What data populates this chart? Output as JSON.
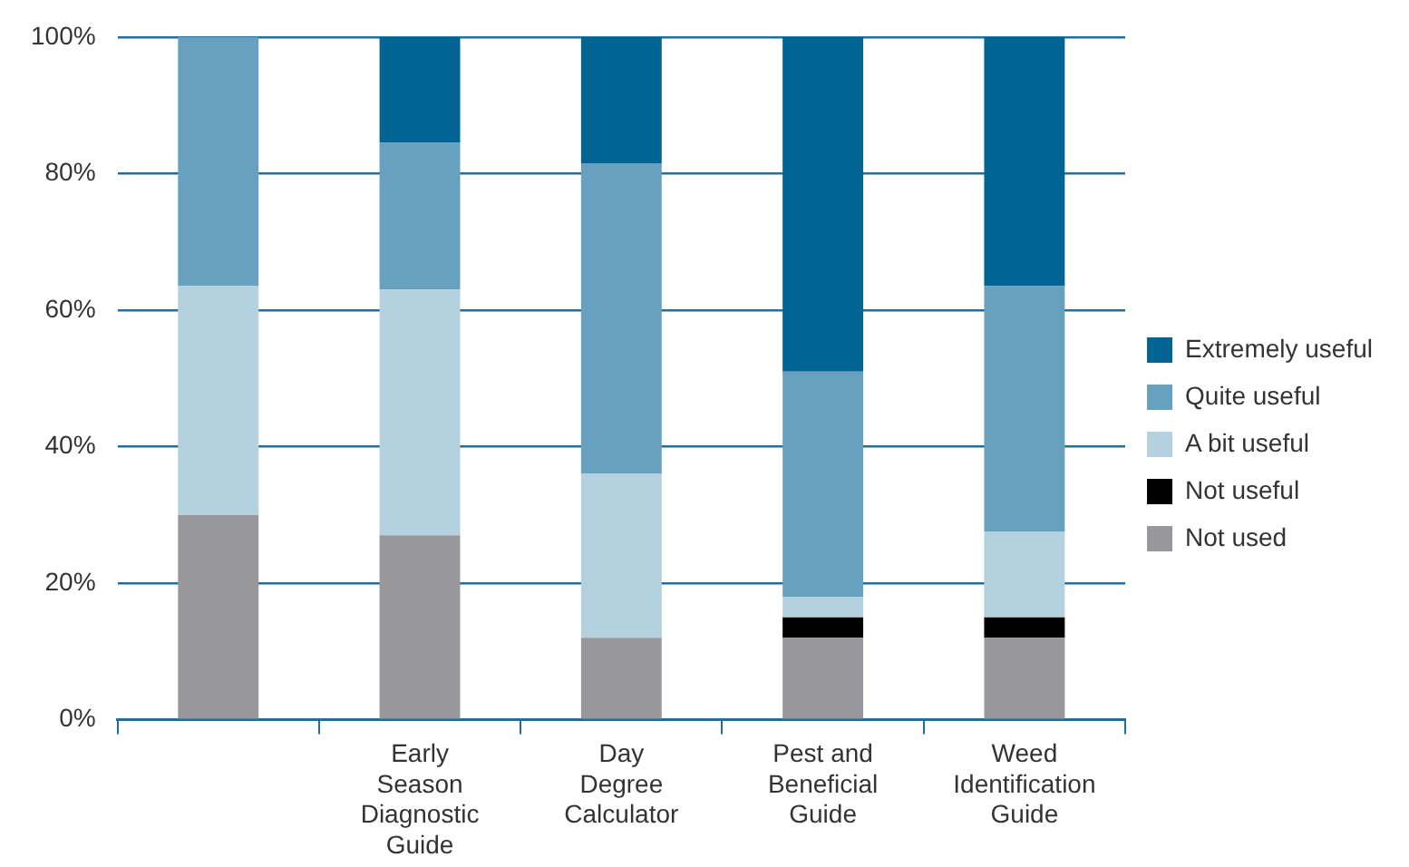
{
  "chart_data": {
    "type": "bar",
    "stacked": true,
    "categories": [
      null,
      "Early Season Diagnostic Guide",
      "Day Degree Calculator",
      "Pest and Beneficial Guide",
      "Weed Identification Guide"
    ],
    "series": [
      {
        "name": "Not used",
        "color": "#98979c",
        "values": [
          30,
          27,
          12,
          12,
          12
        ]
      },
      {
        "name": "Not useful",
        "color": "#000000",
        "values": [
          0,
          0,
          0,
          3,
          3
        ]
      },
      {
        "name": "A bit useful",
        "color": "#b4d1df",
        "values": [
          33.5,
          36,
          24,
          3,
          12.5
        ]
      },
      {
        "name": "Quite useful",
        "color": "#68a1bf",
        "values": [
          36.5,
          21.5,
          45.5,
          33,
          36
        ]
      },
      {
        "name": "Extremely useful",
        "color": "#026493",
        "values": [
          0,
          15.5,
          18.5,
          49,
          36.5
        ]
      }
    ],
    "ylim": [
      0,
      100
    ],
    "yticks": [
      {
        "value": 0,
        "label": "0%"
      },
      {
        "value": 20,
        "label": "20%"
      },
      {
        "value": 40,
        "label": "40%"
      },
      {
        "value": 60,
        "label": "60%"
      },
      {
        "value": 80,
        "label": "80%"
      },
      {
        "value": 100,
        "label": "100%"
      }
    ],
    "grid": "y",
    "legend": "right"
  }
}
